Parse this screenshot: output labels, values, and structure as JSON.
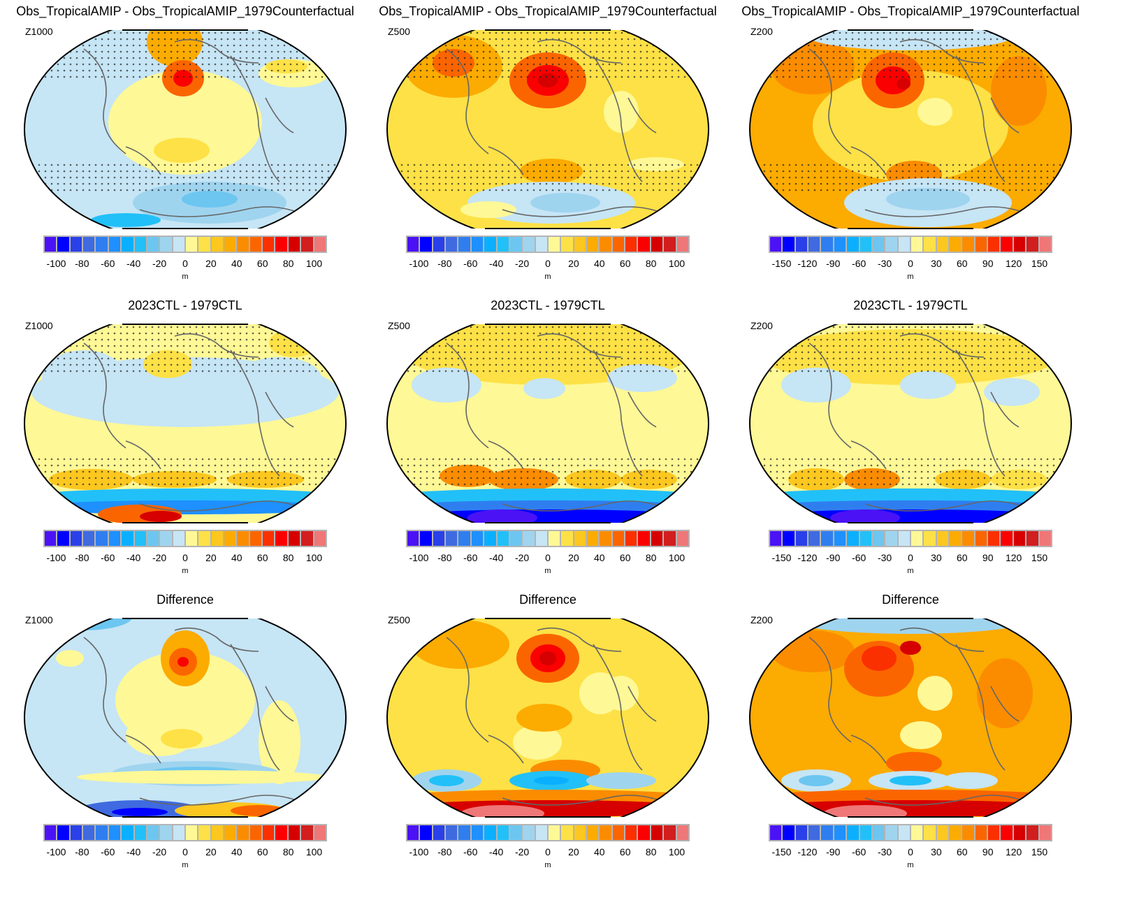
{
  "colorbar_colors": [
    "#4b12f5",
    "#0000ff",
    "#2a40e8",
    "#3f6ae0",
    "#2f7ef0",
    "#1e90ff",
    "#0ab0ff",
    "#22c0f8",
    "#6cc6f0",
    "#9fd4ef",
    "#c6e5f5",
    "#fef896",
    "#fde146",
    "#fcc71f",
    "#fcab00",
    "#fb8c00",
    "#fb6500",
    "#fb3000",
    "#fa0000",
    "#d60000",
    "#d21e1e",
    "#ef7777"
  ],
  "panels": [
    {
      "title": "Obs_TropicalAMIP - Obs_TropicalAMIP_1979Counterfactual",
      "level": "Z1000",
      "ticks": [
        "-100",
        "-80",
        "-60",
        "-40",
        "-20",
        "0",
        "20",
        "40",
        "60",
        "80",
        "100"
      ],
      "unit": "m"
    },
    {
      "title": "Obs_TropicalAMIP - Obs_TropicalAMIP_1979Counterfactual",
      "level": "Z500",
      "ticks": [
        "-100",
        "-80",
        "-60",
        "-40",
        "-20",
        "0",
        "20",
        "40",
        "60",
        "80",
        "100"
      ],
      "unit": "m"
    },
    {
      "title": "Obs_TropicalAMIP - Obs_TropicalAMIP_1979Counterfactual",
      "level": "Z200",
      "ticks": [
        "-150",
        "-120",
        "-90",
        "-60",
        "-30",
        "0",
        "30",
        "60",
        "90",
        "120",
        "150"
      ],
      "unit": "m"
    },
    {
      "title": "2023CTL - 1979CTL",
      "level": "Z1000",
      "ticks": [
        "-100",
        "-80",
        "-60",
        "-40",
        "-20",
        "0",
        "20",
        "40",
        "60",
        "80",
        "100"
      ],
      "unit": "m"
    },
    {
      "title": "2023CTL - 1979CTL",
      "level": "Z500",
      "ticks": [
        "-100",
        "-80",
        "-60",
        "-40",
        "-20",
        "0",
        "20",
        "40",
        "60",
        "80",
        "100"
      ],
      "unit": "m"
    },
    {
      "title": "2023CTL - 1979CTL",
      "level": "Z200",
      "ticks": [
        "-150",
        "-120",
        "-90",
        "-60",
        "-30",
        "0",
        "30",
        "60",
        "90",
        "120",
        "150"
      ],
      "unit": "m"
    },
    {
      "title": "Difference",
      "level": "Z1000",
      "ticks": [
        "-100",
        "-80",
        "-60",
        "-40",
        "-20",
        "0",
        "20",
        "40",
        "60",
        "80",
        "100"
      ],
      "unit": "m"
    },
    {
      "title": "Difference",
      "level": "Z500",
      "ticks": [
        "-100",
        "-80",
        "-60",
        "-40",
        "-20",
        "0",
        "20",
        "40",
        "60",
        "80",
        "100"
      ],
      "unit": "m"
    },
    {
      "title": "Difference",
      "level": "Z200",
      "ticks": [
        "-150",
        "-120",
        "-90",
        "-60",
        "-30",
        "0",
        "30",
        "60",
        "90",
        "120",
        "150"
      ],
      "unit": "m"
    }
  ]
}
